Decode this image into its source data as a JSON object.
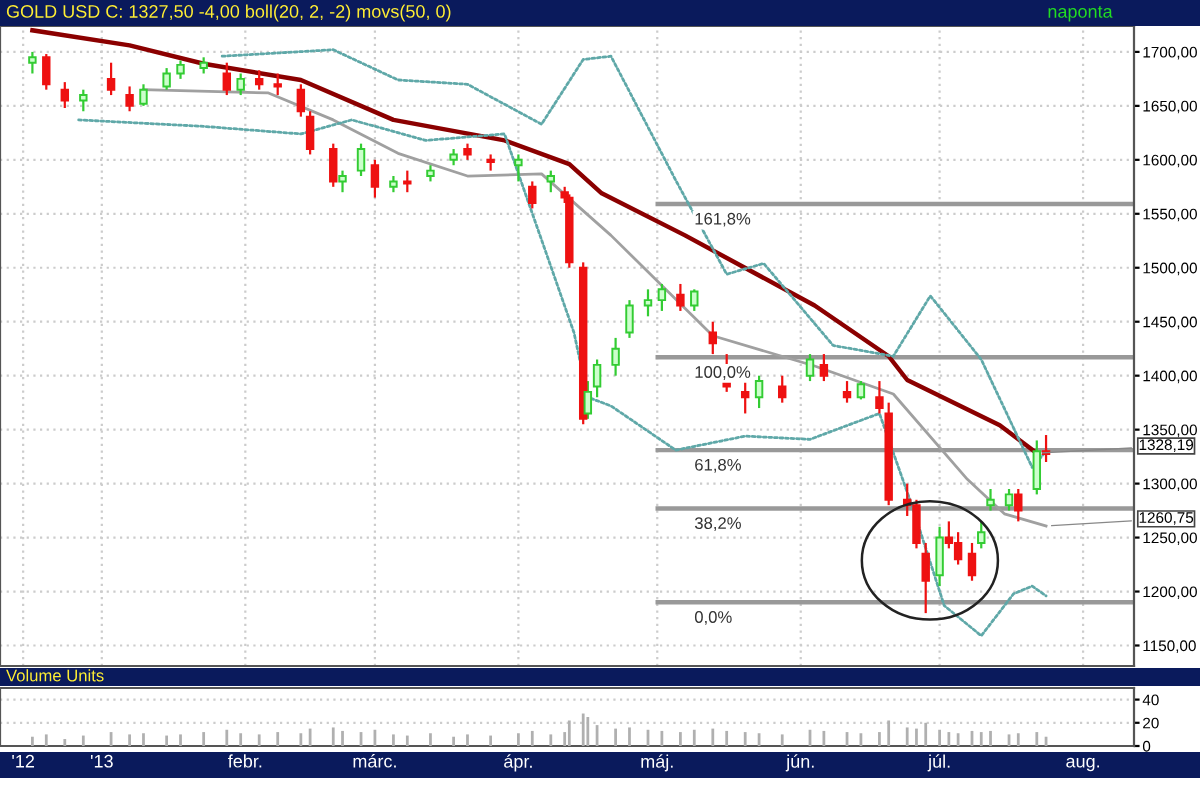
{
  "chart_data": [
    {
      "type": "candlestick",
      "title": "GOLD USD C: 1327,50 -4,00 boll(20, 2, -2) movs(50, 0)",
      "x": [
        "2012-12-17",
        "2012-12-20",
        "2012-12-24",
        "2012-12-28",
        "2013-01-03",
        "2013-01-07",
        "2013-01-10",
        "2013-01-15",
        "2013-01-18",
        "2013-01-23",
        "2013-01-28",
        "2013-01-31",
        "2013-02-04",
        "2013-02-08",
        "2013-02-13",
        "2013-02-15",
        "2013-02-20",
        "2013-02-22",
        "2013-02-26",
        "2013-03-01",
        "2013-03-05",
        "2013-03-08",
        "2013-03-13",
        "2013-03-18",
        "2013-03-21",
        "2013-03-26",
        "2013-04-01",
        "2013-04-04",
        "2013-04-08",
        "2013-04-11",
        "2013-04-12",
        "2013-04-15",
        "2013-04-16",
        "2013-04-18",
        "2013-04-22",
        "2013-04-25",
        "2013-04-29",
        "2013-05-02",
        "2013-05-06",
        "2013-05-09",
        "2013-05-13",
        "2013-05-16",
        "2013-05-20",
        "2013-05-23",
        "2013-05-28",
        "2013-06-03",
        "2013-06-06",
        "2013-06-11",
        "2013-06-14",
        "2013-06-18",
        "2013-06-20",
        "2013-06-24",
        "2013-06-26",
        "2013-06-28",
        "2013-07-01",
        "2013-07-03",
        "2013-07-05",
        "2013-07-08",
        "2013-07-10",
        "2013-07-12",
        "2013-07-16",
        "2013-07-18",
        "2013-07-22",
        "2013-07-24"
      ],
      "ohlc": [
        [
          1690,
          1700,
          1680,
          1695
        ],
        [
          1695,
          1698,
          1665,
          1670
        ],
        [
          1665,
          1672,
          1648,
          1655
        ],
        [
          1655,
          1665,
          1645,
          1660
        ],
        [
          1675,
          1690,
          1660,
          1665
        ],
        [
          1660,
          1668,
          1645,
          1650
        ],
        [
          1652,
          1670,
          1650,
          1665
        ],
        [
          1668,
          1685,
          1665,
          1680
        ],
        [
          1680,
          1692,
          1675,
          1688
        ],
        [
          1685,
          1695,
          1680,
          1690
        ],
        [
          1680,
          1690,
          1660,
          1665
        ],
        [
          1665,
          1680,
          1660,
          1675
        ],
        [
          1675,
          1683,
          1665,
          1670
        ],
        [
          1670,
          1680,
          1660,
          1668
        ],
        [
          1665,
          1670,
          1640,
          1645
        ],
        [
          1640,
          1645,
          1605,
          1610
        ],
        [
          1610,
          1615,
          1575,
          1580
        ],
        [
          1580,
          1590,
          1570,
          1585
        ],
        [
          1590,
          1615,
          1585,
          1610
        ],
        [
          1595,
          1600,
          1565,
          1575
        ],
        [
          1575,
          1585,
          1570,
          1580
        ],
        [
          1580,
          1590,
          1570,
          1578
        ],
        [
          1585,
          1595,
          1580,
          1590
        ],
        [
          1600,
          1610,
          1595,
          1605
        ],
        [
          1610,
          1615,
          1600,
          1605
        ],
        [
          1600,
          1605,
          1590,
          1598
        ],
        [
          1595,
          1605,
          1580,
          1600
        ],
        [
          1575,
          1580,
          1555,
          1560
        ],
        [
          1580,
          1590,
          1570,
          1585
        ],
        [
          1570,
          1575,
          1560,
          1565
        ],
        [
          1565,
          1568,
          1500,
          1505
        ],
        [
          1500,
          1505,
          1355,
          1360
        ],
        [
          1365,
          1395,
          1360,
          1385
        ],
        [
          1390,
          1415,
          1380,
          1410
        ],
        [
          1410,
          1435,
          1400,
          1425
        ],
        [
          1440,
          1470,
          1435,
          1465
        ],
        [
          1465,
          1480,
          1455,
          1470
        ],
        [
          1470,
          1485,
          1460,
          1480
        ],
        [
          1475,
          1485,
          1460,
          1465
        ],
        [
          1465,
          1480,
          1460,
          1478
        ],
        [
          1440,
          1450,
          1420,
          1430
        ],
        [
          1410,
          1420,
          1385,
          1390
        ],
        [
          1385,
          1395,
          1365,
          1380
        ],
        [
          1380,
          1400,
          1370,
          1395
        ],
        [
          1390,
          1400,
          1375,
          1380
        ],
        [
          1400,
          1420,
          1395,
          1415
        ],
        [
          1410,
          1420,
          1395,
          1400
        ],
        [
          1385,
          1395,
          1375,
          1380
        ],
        [
          1380,
          1395,
          1378,
          1392
        ],
        [
          1380,
          1395,
          1365,
          1370
        ],
        [
          1365,
          1375,
          1280,
          1285
        ],
        [
          1285,
          1300,
          1270,
          1280
        ],
        [
          1280,
          1285,
          1240,
          1245
        ],
        [
          1235,
          1245,
          1180,
          1210
        ],
        [
          1215,
          1260,
          1205,
          1250
        ],
        [
          1250,
          1265,
          1240,
          1245
        ],
        [
          1245,
          1255,
          1225,
          1230
        ],
        [
          1235,
          1245,
          1210,
          1215
        ],
        [
          1245,
          1265,
          1240,
          1255
        ],
        [
          1280,
          1295,
          1275,
          1285
        ],
        [
          1280,
          1295,
          1275,
          1290
        ],
        [
          1290,
          1295,
          1265,
          1275
        ],
        [
          1295,
          1340,
          1290,
          1330
        ],
        [
          1330,
          1345,
          1320,
          1327.5
        ]
      ],
      "colors": [
        "#33cc33",
        "#ee1111",
        "#ee1111",
        "#33cc33",
        "#ee1111",
        "#ee1111",
        "#33cc33",
        "#33cc33",
        "#33cc33",
        "#33cc33",
        "#ee1111",
        "#33cc33",
        "#ee1111",
        "#ee1111",
        "#ee1111",
        "#ee1111",
        "#ee1111",
        "#33cc33",
        "#33cc33",
        "#ee1111",
        "#33cc33",
        "#ee1111",
        "#33cc33",
        "#33cc33",
        "#ee1111",
        "#ee1111",
        "#33cc33",
        "#ee1111",
        "#33cc33",
        "#ee1111",
        "#ee1111",
        "#ee1111",
        "#33cc33",
        "#33cc33",
        "#33cc33",
        "#33cc33",
        "#33cc33",
        "#33cc33",
        "#ee1111",
        "#33cc33",
        "#ee1111",
        "#ee1111",
        "#ee1111",
        "#33cc33",
        "#ee1111",
        "#33cc33",
        "#ee1111",
        "#ee1111",
        "#33cc33",
        "#ee1111",
        "#ee1111",
        "#ee1111",
        "#ee1111",
        "#ee1111",
        "#33cc33",
        "#ee1111",
        "#ee1111",
        "#ee1111",
        "#33cc33",
        "#33cc33",
        "#33cc33",
        "#ee1111",
        "#33cc33",
        "#ee1111"
      ],
      "series": [
        {
          "type": "line",
          "color": "#8b0000",
          "line_style": "solid",
          "x": [
            "2012-12-17",
            "2013-01-07",
            "2013-01-23",
            "2013-02-13",
            "2013-03-05",
            "2013-03-29",
            "2013-04-12",
            "2013-04-19",
            "2013-05-07",
            "2013-06-04",
            "2013-06-20",
            "2013-06-24",
            "2013-07-14",
            "2013-07-22"
          ],
          "values": [
            1720,
            1706,
            1689,
            1674,
            1637,
            1618,
            1596,
            1569,
            1530,
            1465,
            1418,
            1396,
            1354,
            1328.19
          ]
        },
        {
          "type": "line",
          "color": "#a0a0a0",
          "line_style": "solid",
          "x": [
            "2013-01-10",
            "2013-02-06",
            "2013-02-20",
            "2013-03-06",
            "2013-03-21",
            "2013-04-06",
            "2013-04-21",
            "2013-05-13",
            "2013-06-04",
            "2013-06-21",
            "2013-07-07",
            "2013-07-15",
            "2013-07-24"
          ],
          "values": [
            1665,
            1662,
            1637,
            1606,
            1585,
            1587,
            1530,
            1437,
            1409,
            1383,
            1304,
            1272,
            1260.75
          ]
        },
        {
          "type": "line",
          "color": "#5fa8a8",
          "line_style": "dotted",
          "x": [
            "2013-01-27",
            "2013-02-20",
            "2013-03-06",
            "2013-03-21",
            "2013-04-06",
            "2013-04-15",
            "2013-04-21",
            "2013-05-05",
            "2013-05-16",
            "2013-05-24",
            "2013-06-08",
            "2013-06-21",
            "2013-06-29",
            "2013-07-10",
            "2013-07-21",
            "2013-07-24"
          ],
          "values": [
            1696,
            1702,
            1674,
            1670,
            1633,
            1693,
            1696,
            1581,
            1494,
            1504,
            1428,
            1418,
            1474,
            1415,
            1315,
            1330
          ]
        },
        {
          "type": "line",
          "color": "#5fa8a8",
          "line_style": "dotted",
          "x": [
            "2012-12-27",
            "2013-01-23",
            "2013-02-13",
            "2013-02-24",
            "2013-03-12",
            "2013-03-29",
            "2013-04-13",
            "2013-04-16",
            "2013-04-21",
            "2013-05-05",
            "2013-05-20",
            "2013-06-03",
            "2013-06-18",
            "2013-06-25",
            "2013-07-02",
            "2013-07-10",
            "2013-07-17",
            "2013-07-21",
            "2013-07-24"
          ],
          "values": [
            1637,
            1631,
            1624,
            1637,
            1618,
            1624,
            1440,
            1380,
            1372,
            1331,
            1344,
            1341,
            1365,
            1280,
            1187,
            1159,
            1198,
            1205,
            1196
          ]
        }
      ],
      "ref_lines": [
        {
          "axis": "y",
          "value": 1559,
          "color": "#999999"
        },
        {
          "axis": "y",
          "value": 1417,
          "color": "#999999"
        },
        {
          "axis": "y",
          "value": 1331,
          "color": "#999999"
        },
        {
          "axis": "y",
          "value": 1277,
          "color": "#999999"
        },
        {
          "axis": "y",
          "value": 1190,
          "color": "#999999"
        }
      ],
      "annotations": [
        "naponta",
        {
          "text": "161,8%",
          "x": "2013-05-09",
          "y": 1559
        },
        {
          "text": "100,0%",
          "x": "2013-05-09",
          "y": 1417
        },
        {
          "text": "61,8%",
          "x": "2013-05-09",
          "y": 1331
        },
        {
          "text": "38,2%",
          "x": "2013-05-09",
          "y": 1277
        },
        {
          "text": "0,0%",
          "x": "2013-05-09",
          "y": 1190
        },
        {
          "text": "1328,19",
          "x": "2013-07-22",
          "y": 1328.19
        },
        {
          "text": "1260,75",
          "x": "2013-07-24",
          "y": 1260.75
        }
      ],
      "xlim": [
        "2012-12-10",
        "2013-08-12"
      ],
      "xticks": [
        {
          "value": "2012-12-15",
          "label": null
        },
        {
          "value": "2013-01-01",
          "label": null
        },
        {
          "value": "2013-02-01",
          "label": null
        },
        {
          "value": "2013-03-01",
          "label": null
        },
        {
          "value": "2013-04-01",
          "label": null
        },
        {
          "value": "2013-05-01",
          "label": null
        },
        {
          "value": "2013-06-01",
          "label": null
        },
        {
          "value": "2013-07-01",
          "label": null
        },
        {
          "value": "2013-08-01",
          "label": null
        }
      ],
      "ylim": [
        1131,
        1724
      ],
      "yticks": [
        {
          "value": 1150,
          "label": "1150,00"
        },
        {
          "value": 1200,
          "label": "1200,00"
        },
        {
          "value": 1250,
          "label": "1250,00"
        },
        {
          "value": 1300,
          "label": "1300,00"
        },
        {
          "value": 1350,
          "label": "1350,00"
        },
        {
          "value": 1400,
          "label": "1400,00"
        },
        {
          "value": 1450,
          "label": "1450,00"
        },
        {
          "value": 1500,
          "label": "1500,00"
        },
        {
          "value": 1550,
          "label": "1550,00"
        },
        {
          "value": 1600,
          "label": "1600,00"
        },
        {
          "value": 1650,
          "label": "1650,00"
        },
        {
          "value": 1700,
          "label": "1700,00"
        }
      ],
      "grid": true,
      "tick_labels": "y"
    },
    {
      "type": "bar",
      "title": "Volume Units",
      "color": "#b0b0b0",
      "x": [
        "2012-12-17",
        "2012-12-20",
        "2012-12-24",
        "2012-12-28",
        "2013-01-03",
        "2013-01-07",
        "2013-01-10",
        "2013-01-15",
        "2013-01-18",
        "2013-01-23",
        "2013-01-28",
        "2013-01-31",
        "2013-02-04",
        "2013-02-08",
        "2013-02-13",
        "2013-02-15",
        "2013-02-20",
        "2013-02-22",
        "2013-02-26",
        "2013-03-01",
        "2013-03-05",
        "2013-03-08",
        "2013-03-13",
        "2013-03-18",
        "2013-03-21",
        "2013-03-26",
        "2013-04-01",
        "2013-04-04",
        "2013-04-08",
        "2013-04-11",
        "2013-04-12",
        "2013-04-15",
        "2013-04-16",
        "2013-04-18",
        "2013-04-22",
        "2013-04-25",
        "2013-04-29",
        "2013-05-02",
        "2013-05-06",
        "2013-05-09",
        "2013-05-13",
        "2013-05-16",
        "2013-05-20",
        "2013-05-23",
        "2013-05-28",
        "2013-06-03",
        "2013-06-06",
        "2013-06-11",
        "2013-06-14",
        "2013-06-18",
        "2013-06-20",
        "2013-06-24",
        "2013-06-26",
        "2013-06-28",
        "2013-07-01",
        "2013-07-03",
        "2013-07-05",
        "2013-07-08",
        "2013-07-10",
        "2013-07-12",
        "2013-07-16",
        "2013-07-18",
        "2013-07-22",
        "2013-07-24"
      ],
      "values": [
        8,
        10,
        6,
        9,
        12,
        10,
        11,
        9,
        10,
        12,
        14,
        11,
        10,
        12,
        11,
        15,
        16,
        13,
        12,
        14,
        10,
        9,
        11,
        8,
        10,
        9,
        11,
        13,
        10,
        12,
        22,
        28,
        25,
        18,
        15,
        16,
        14,
        13,
        12,
        14,
        15,
        13,
        12,
        11,
        10,
        14,
        13,
        12,
        11,
        12,
        22,
        16,
        15,
        20,
        14,
        12,
        11,
        13,
        12,
        13,
        10,
        11,
        12,
        8
      ],
      "xlim": [
        "2012-12-10",
        "2013-08-12"
      ],
      "xticks": [
        {
          "value": "2012-12-15",
          "label": "'12"
        },
        {
          "value": "2013-01-01",
          "label": "'13"
        },
        {
          "value": "2013-02-01",
          "label": "febr."
        },
        {
          "value": "2013-03-01",
          "label": "márc."
        },
        {
          "value": "2013-04-01",
          "label": "ápr."
        },
        {
          "value": "2013-05-01",
          "label": "máj."
        },
        {
          "value": "2013-06-01",
          "label": "jún."
        },
        {
          "value": "2013-07-01",
          "label": "júl."
        },
        {
          "value": "2013-08-01",
          "label": "aug."
        }
      ],
      "ylim": [
        0,
        50
      ],
      "yticks": [
        0,
        20,
        40
      ],
      "grid": "y"
    }
  ]
}
